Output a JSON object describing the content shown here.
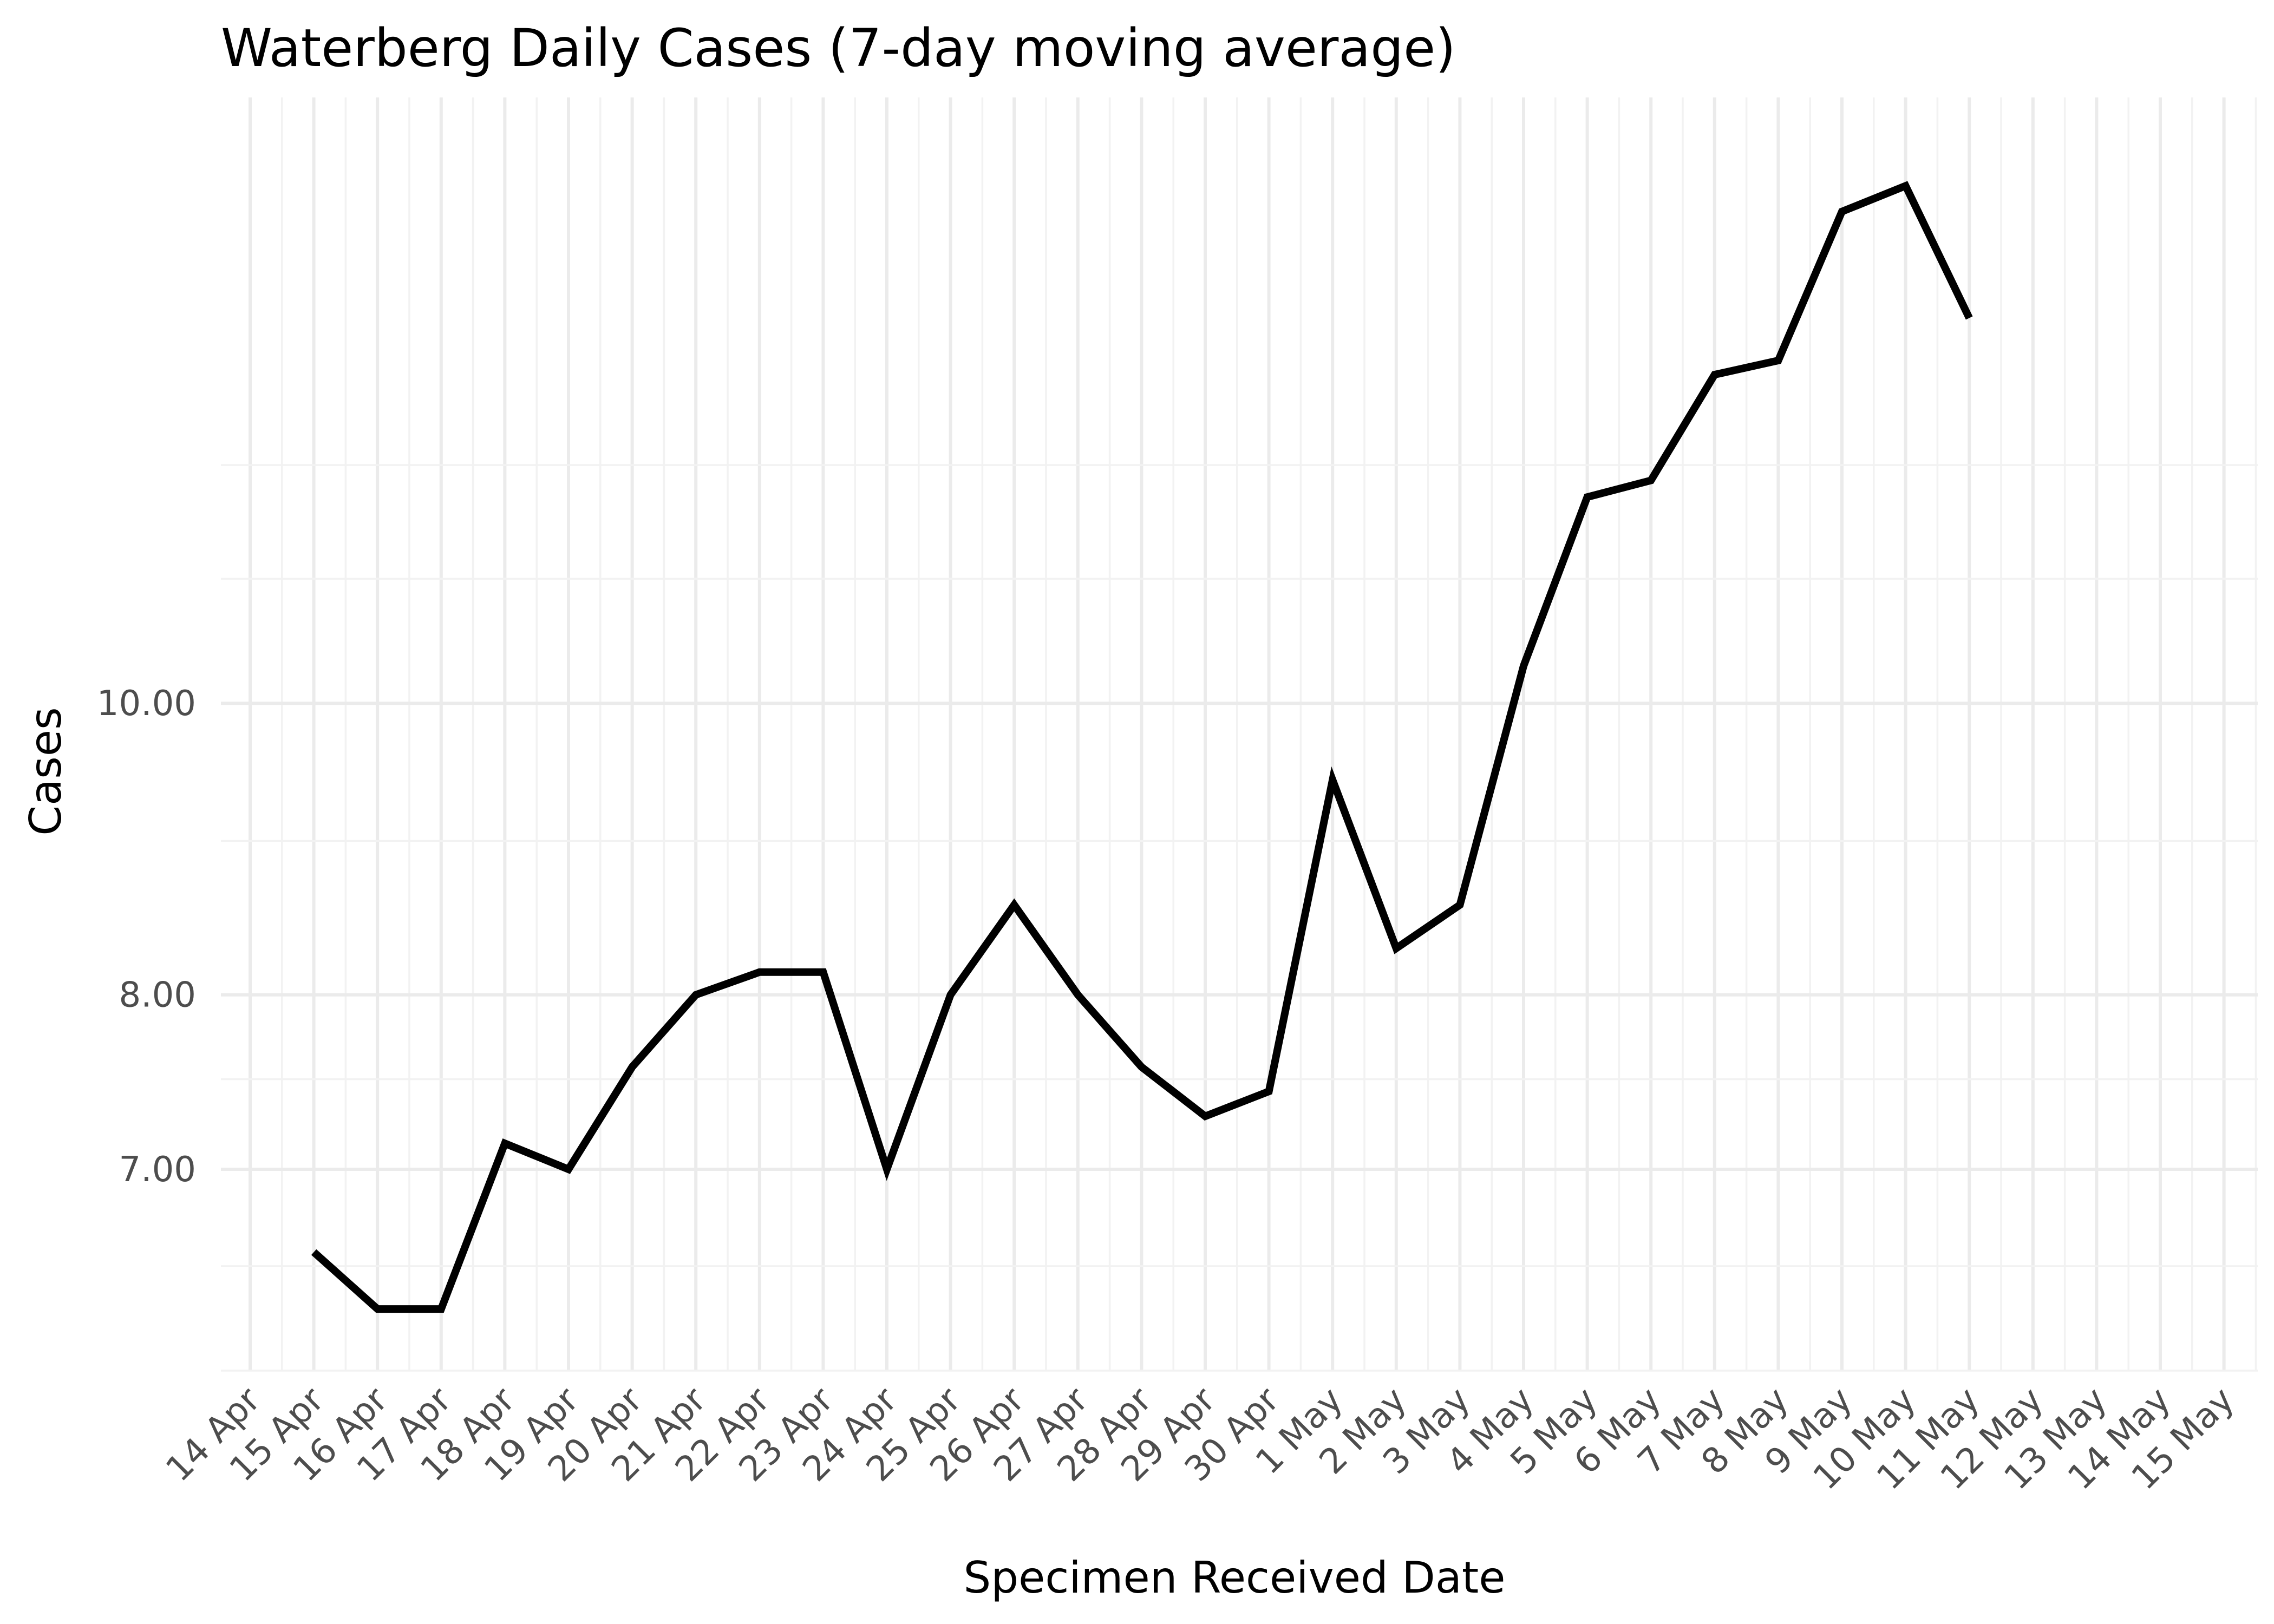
{
  "chart_data": {
    "type": "line",
    "title": "Waterberg Daily Cases (7-day moving average)",
    "xlabel": "Specimen Received Date",
    "ylabel": "Cases",
    "y_scale": "log",
    "grid": true,
    "legend": "none",
    "ylim": [
      6.0,
      15.9
    ],
    "x_categories": [
      "14 Apr",
      "15 Apr",
      "16 Apr",
      "17 Apr",
      "18 Apr",
      "19 Apr",
      "20 Apr",
      "21 Apr",
      "22 Apr",
      "23 Apr",
      "24 Apr",
      "25 Apr",
      "26 Apr",
      "27 Apr",
      "28 Apr",
      "29 Apr",
      "30 Apr",
      "1 May",
      "2 May",
      "3 May",
      "4 May",
      "5 May",
      "6 May",
      "7 May",
      "8 May",
      "9 May",
      "10 May",
      "11 May",
      "12 May",
      "13 May",
      "14 May",
      "15 May"
    ],
    "y_ticks": [
      {
        "value": 7,
        "label": "7.00"
      },
      {
        "value": 8,
        "label": "8.00"
      },
      {
        "value": 10,
        "label": "10.00"
      }
    ],
    "y_gridlines": [
      6.0,
      6.5,
      7.0,
      7.5,
      8.0,
      9.0,
      10.0,
      11.0,
      12.0
    ],
    "series": [
      {
        "color": "#000000",
        "x": [
          "15 Apr",
          "16 Apr",
          "17 Apr",
          "18 Apr",
          "19 Apr",
          "20 Apr",
          "21 Apr",
          "22 Apr",
          "23 Apr",
          "24 Apr",
          "25 Apr",
          "26 Apr",
          "27 Apr",
          "28 Apr",
          "29 Apr",
          "30 Apr",
          "1 May",
          "2 May",
          "3 May",
          "4 May",
          "5 May",
          "6 May",
          "7 May",
          "8 May",
          "9 May",
          "10 May",
          "11 May"
        ],
        "y": [
          6.57,
          6.29,
          6.29,
          7.14,
          7.0,
          7.57,
          8.0,
          8.14,
          8.14,
          7.0,
          8.0,
          8.57,
          8.0,
          7.57,
          7.29,
          7.43,
          9.43,
          8.29,
          8.57,
          10.29,
          11.71,
          11.86,
          12.86,
          13.0,
          14.57,
          14.86,
          13.43
        ]
      }
    ]
  }
}
